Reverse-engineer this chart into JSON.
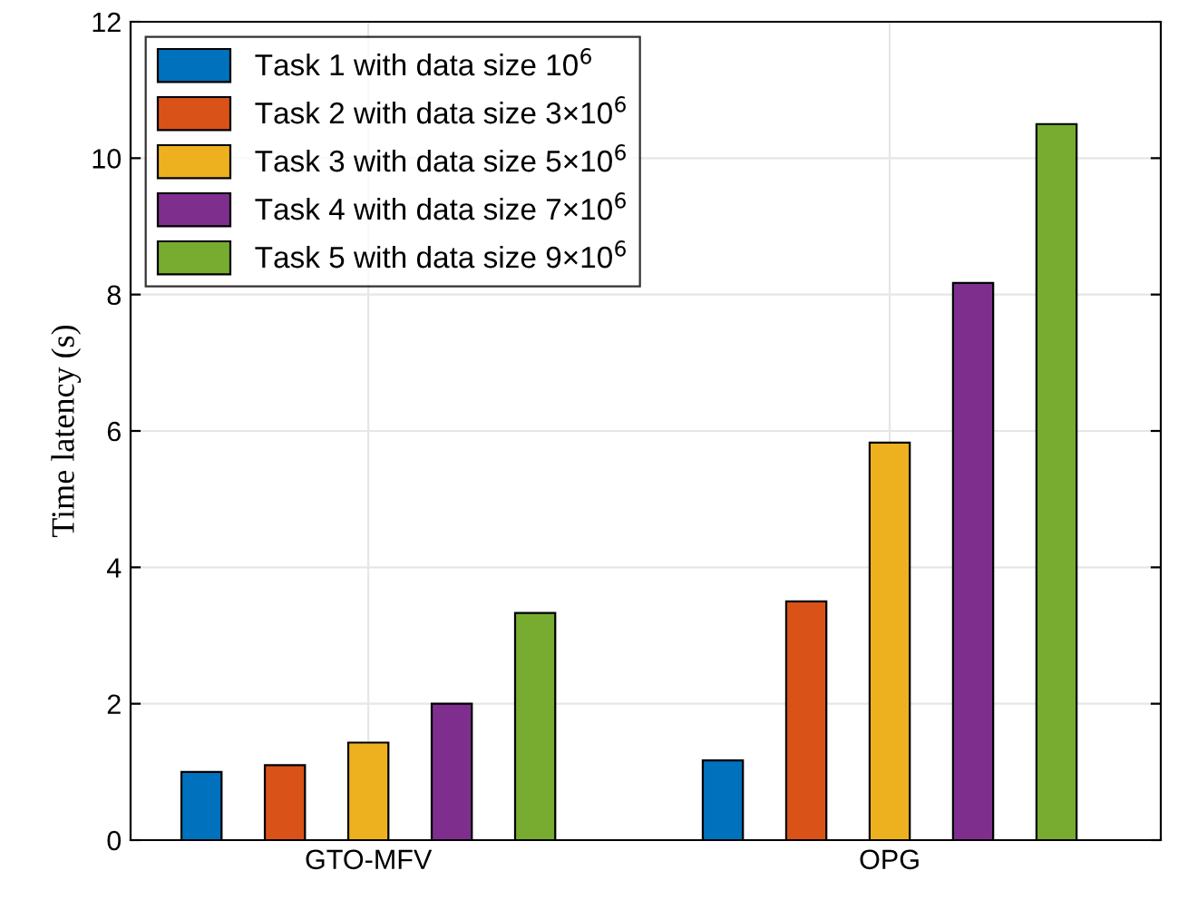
{
  "chart_data": {
    "type": "bar",
    "ylabel": "Time latency (s)",
    "categories": [
      "GTO-MFV",
      "OPG"
    ],
    "series": [
      {
        "name": "Task 1 with data size 10$^{6}$",
        "color": "#0072bd",
        "values": [
          1.0,
          1.17
        ]
      },
      {
        "name": "Task 2 with data size 3×10$^{6}$",
        "color": "#d95319",
        "values": [
          1.1,
          3.5
        ]
      },
      {
        "name": "Task 3 with data size 5×10$^{6}$",
        "color": "#edb120",
        "values": [
          1.43,
          5.83
        ]
      },
      {
        "name": "Task 4 with data size 7×10$^{6}$",
        "color": "#7e2f8e",
        "values": [
          2.0,
          8.17
        ]
      },
      {
        "name": "Task 5 with data size 9×10$^{6}$",
        "color": "#77ac30",
        "values": [
          3.33,
          10.5
        ]
      }
    ],
    "ylim": [
      0,
      12
    ],
    "yticks": [
      0,
      2,
      4,
      6,
      8,
      10,
      12
    ],
    "grid": true,
    "legend": "top left"
  }
}
